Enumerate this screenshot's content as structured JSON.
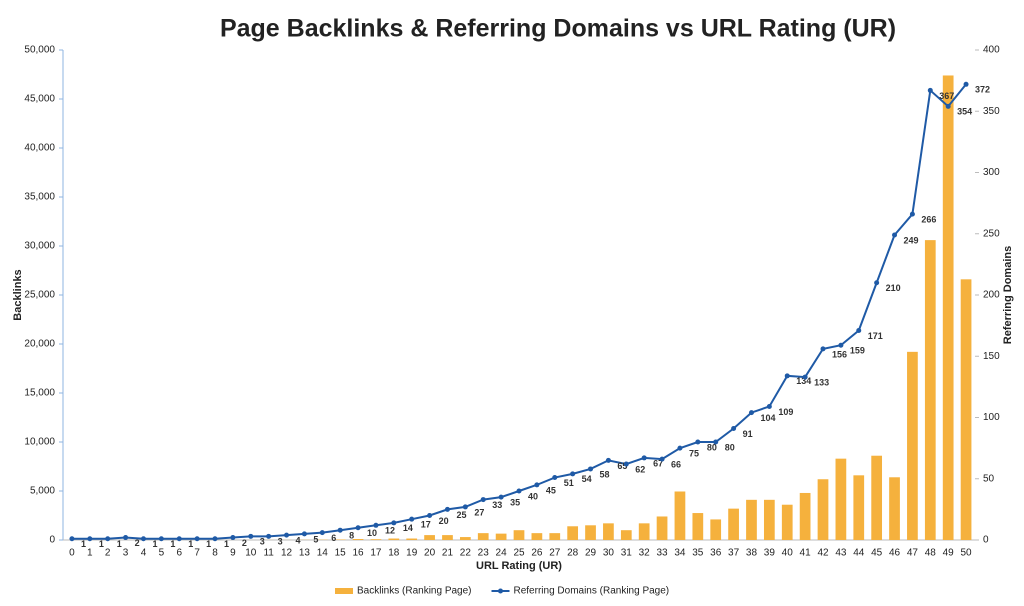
{
  "chart_data": {
    "type": "bar-line",
    "title": "Page Backlinks & Referring Domains vs URL Rating (UR)",
    "x_label": "URL Rating (UR)",
    "y_label": "Backlinks",
    "y2_label": "Referring Domains",
    "categories": [
      "0",
      "1",
      "2",
      "3",
      "4",
      "5",
      "6",
      "7",
      "8",
      "9",
      "10",
      "11",
      "12",
      "13",
      "14",
      "15",
      "16",
      "17",
      "18",
      "19",
      "20",
      "21",
      "22",
      "23",
      "24",
      "25",
      "26",
      "27",
      "28",
      "29",
      "30",
      "31",
      "32",
      "33",
      "34",
      "35",
      "36",
      "37",
      "38",
      "39",
      "40",
      "41",
      "42",
      "43",
      "44",
      "45",
      "46",
      "47",
      "48",
      "49",
      "50"
    ],
    "series": [
      {
        "name": "Backlinks (Ranking Page)",
        "type": "bar",
        "color": "#f5b13d",
        "values": [
          2,
          2,
          2,
          3,
          2,
          2,
          3,
          3,
          4,
          5,
          5,
          10,
          10,
          20,
          30,
          50,
          100,
          80,
          150,
          150,
          500,
          500,
          300,
          700,
          650,
          1000,
          700,
          700,
          1400,
          1500,
          1700,
          1000,
          1700,
          2400,
          4950,
          2750,
          2100,
          3200,
          4100,
          4100,
          3600,
          4800,
          6200,
          8300,
          6600,
          8600,
          6400,
          19200,
          30600,
          47400,
          26600
        ]
      },
      {
        "name": "Referring Domains (Ranking Page)",
        "type": "line",
        "axis": "y2",
        "color": "#1f5aa6",
        "values": [
          1,
          1,
          1,
          2,
          1,
          1,
          1,
          1,
          1,
          2,
          3,
          3,
          4,
          5,
          6,
          8,
          10,
          12,
          14,
          17,
          20,
          25,
          27,
          33,
          35,
          40,
          45,
          51,
          54,
          58,
          65,
          62,
          67,
          66,
          75,
          80,
          80,
          91,
          104,
          109,
          134,
          133,
          156,
          159,
          171,
          210,
          249,
          266,
          367,
          354,
          372
        ]
      }
    ],
    "ylim": [
      0,
      50000
    ],
    "yticks": [
      0,
      {
        "value": 5000,
        "label": "5,000"
      },
      {
        "value": 10000,
        "label": "10,000"
      },
      {
        "value": 15000,
        "label": "15,000"
      },
      {
        "value": 20000,
        "label": "20,000"
      },
      {
        "value": 25000,
        "label": "25,000"
      },
      {
        "value": 30000,
        "label": "30,000"
      },
      {
        "value": 35000,
        "label": "35,000"
      },
      {
        "value": 40000,
        "label": "40,000"
      },
      {
        "value": 45000,
        "label": "45,000"
      },
      {
        "value": 50000,
        "label": "50,000"
      }
    ],
    "y2lim": [
      0,
      400
    ],
    "y2ticks": [
      0,
      50,
      100,
      150,
      200,
      250,
      300,
      350,
      400
    ],
    "legend": "bottom"
  }
}
